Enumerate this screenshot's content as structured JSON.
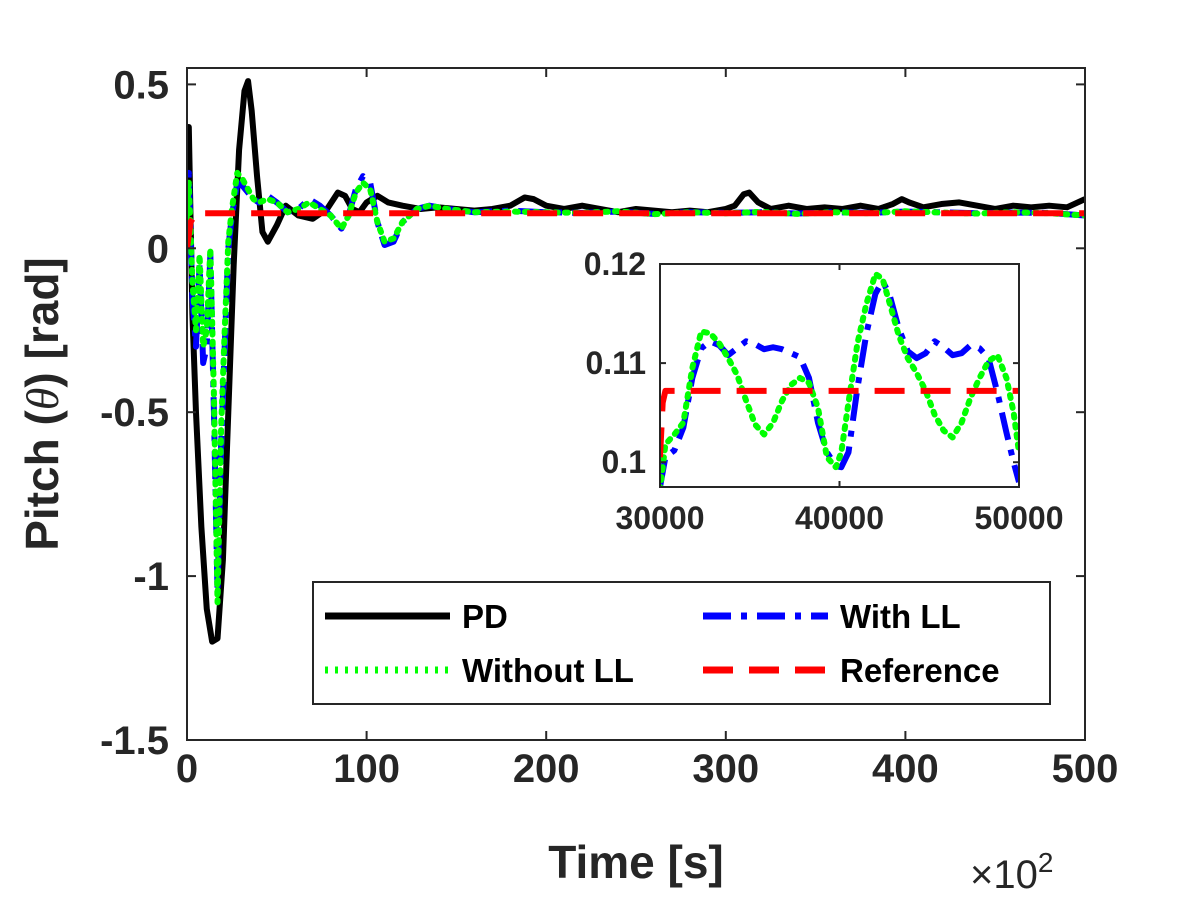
{
  "colors": {
    "PD": "#000000",
    "With LL": "#0000ff",
    "Without LL": "#00ff00",
    "Reference": "#ff0000",
    "axis": "#262626"
  },
  "axis_text": {
    "xlabel": "Time [s]",
    "ylabel_pre": "Pitch (",
    "ylabel_sym": "θ",
    "ylabel_post": ") [rad]",
    "multiplier_base": "×10",
    "multiplier_exp": "2"
  },
  "chart_data": [
    {
      "type": "line",
      "title": "",
      "xlabel": "Time [s]",
      "ylabel": "Pitch (θ) [rad]",
      "x_multiplier": "×10^2",
      "xlim": [
        0,
        500
      ],
      "ylim": [
        -1.5,
        0.55
      ],
      "xticks": [
        0,
        100,
        200,
        300,
        400,
        500
      ],
      "xtick_labels": [
        "0",
        "100",
        "200",
        "300",
        "400",
        "500"
      ],
      "yticks": [
        -1.5,
        -1,
        -0.5,
        0,
        0.5
      ],
      "ytick_labels": [
        "-1.5",
        "-1",
        "-0.5",
        "0",
        "0.5"
      ],
      "grid": false,
      "legend_position": "bottom-right",
      "legend": [
        "PD",
        "With LL",
        "Without LL",
        "Reference"
      ],
      "series": [
        {
          "name": "PD",
          "style": "solid",
          "x": [
            0,
            1,
            3,
            5,
            8,
            11,
            14,
            17,
            20,
            23,
            26,
            29,
            32,
            34,
            36,
            39,
            42,
            45,
            50,
            55,
            62,
            70,
            78,
            84,
            88,
            92,
            96,
            100,
            106,
            112,
            120,
            130,
            140,
            150,
            160,
            170,
            180,
            188,
            193,
            200,
            210,
            220,
            230,
            240,
            250,
            260,
            270,
            280,
            290,
            300,
            305,
            310,
            313,
            318,
            325,
            335,
            345,
            355,
            365,
            375,
            385,
            393,
            398,
            402,
            410,
            420,
            430,
            440,
            450,
            460,
            470,
            480,
            490,
            500
          ],
          "y": [
            0.1,
            0.37,
            -0.2,
            -0.5,
            -0.85,
            -1.1,
            -1.2,
            -1.19,
            -0.95,
            -0.5,
            -0.05,
            0.3,
            0.48,
            0.51,
            0.42,
            0.22,
            0.05,
            0.02,
            0.07,
            0.13,
            0.1,
            0.09,
            0.12,
            0.17,
            0.16,
            0.12,
            0.11,
            0.14,
            0.16,
            0.14,
            0.13,
            0.12,
            0.125,
            0.12,
            0.115,
            0.12,
            0.13,
            0.155,
            0.15,
            0.13,
            0.12,
            0.13,
            0.12,
            0.11,
            0.12,
            0.115,
            0.11,
            0.115,
            0.11,
            0.12,
            0.13,
            0.165,
            0.17,
            0.14,
            0.12,
            0.13,
            0.12,
            0.125,
            0.12,
            0.13,
            0.12,
            0.135,
            0.15,
            0.14,
            0.125,
            0.135,
            0.14,
            0.13,
            0.12,
            0.13,
            0.125,
            0.13,
            0.125,
            0.15
          ]
        },
        {
          "name": "With LL",
          "style": "dashdot",
          "x": [
            0,
            1,
            3,
            5,
            7,
            9,
            11,
            13,
            15,
            17,
            19,
            21,
            23,
            25,
            28,
            31,
            34,
            37,
            40,
            45,
            50,
            56,
            62,
            68,
            74,
            80,
            86,
            90,
            94,
            98,
            102,
            106,
            110,
            115,
            120,
            128,
            135,
            145,
            160,
            180,
            200,
            220,
            240,
            260,
            280,
            300,
            320,
            340,
            360,
            380,
            400,
            420,
            440,
            460,
            480,
            500
          ],
          "y": [
            0.1,
            0.23,
            -0.15,
            -0.3,
            -0.05,
            -0.35,
            -0.3,
            -0.02,
            -0.5,
            -1.05,
            -0.6,
            -0.3,
            0.0,
            0.1,
            0.2,
            0.19,
            0.17,
            0.15,
            0.14,
            0.16,
            0.14,
            0.11,
            0.12,
            0.15,
            0.13,
            0.1,
            0.06,
            0.1,
            0.18,
            0.22,
            0.2,
            0.08,
            0.01,
            0.02,
            0.08,
            0.12,
            0.13,
            0.12,
            0.11,
            0.115,
            0.11,
            0.108,
            0.112,
            0.105,
            0.11,
            0.108,
            0.11,
            0.106,
            0.11,
            0.108,
            0.112,
            0.11,
            0.107,
            0.109,
            0.108,
            0.1
          ]
        },
        {
          "name": "Without LL",
          "style": "dotted",
          "x": [
            0,
            1,
            3,
            5,
            7,
            9,
            11,
            13,
            15,
            17,
            19,
            21,
            23,
            25,
            28,
            31,
            34,
            37,
            40,
            45,
            50,
            56,
            62,
            68,
            74,
            80,
            86,
            90,
            94,
            98,
            102,
            106,
            110,
            115,
            120,
            128,
            135,
            145,
            160,
            180,
            200,
            220,
            240,
            260,
            280,
            300,
            320,
            340,
            360,
            380,
            400,
            420,
            440,
            460,
            480,
            500
          ],
          "y": [
            0.1,
            0.2,
            -0.1,
            -0.25,
            -0.02,
            -0.3,
            -0.25,
            0.0,
            -0.45,
            -1.08,
            -0.55,
            -0.25,
            0.02,
            0.12,
            0.23,
            0.21,
            0.18,
            0.15,
            0.14,
            0.15,
            0.14,
            0.11,
            0.12,
            0.14,
            0.12,
            0.1,
            0.06,
            0.1,
            0.17,
            0.2,
            0.18,
            0.08,
            0.02,
            0.03,
            0.08,
            0.12,
            0.13,
            0.12,
            0.11,
            0.112,
            0.11,
            0.108,
            0.113,
            0.104,
            0.11,
            0.107,
            0.111,
            0.105,
            0.11,
            0.107,
            0.113,
            0.109,
            0.106,
            0.11,
            0.107,
            0.1
          ]
        },
        {
          "name": "Reference",
          "style": "dashed",
          "x": [
            0,
            2,
            5,
            500
          ],
          "y": [
            0.0,
            0.08,
            0.107,
            0.107
          ]
        }
      ]
    },
    {
      "type": "line",
      "title": "",
      "xlabel": "",
      "ylabel": "",
      "xlim": [
        30000,
        50000
      ],
      "ylim": [
        0.0975,
        0.12
      ],
      "xticks": [
        30000,
        40000,
        50000
      ],
      "xtick_labels": [
        "30000",
        "40000",
        "50000"
      ],
      "yticks": [
        0.1,
        0.11,
        0.12
      ],
      "ytick_labels": [
        "0.1",
        "0.11",
        "0.12"
      ],
      "grid": false,
      "series": [
        {
          "name": "With LL",
          "style": "dashdot",
          "x": [
            30000,
            30300,
            30800,
            31300,
            31800,
            32300,
            32800,
            33300,
            33800,
            34300,
            34800,
            35300,
            35800,
            36300,
            36800,
            37300,
            37800,
            38300,
            38800,
            39300,
            39800,
            40100,
            40500,
            41000,
            41500,
            42000,
            42400,
            42800,
            43300,
            43800,
            44300,
            44800,
            45300,
            45800,
            46300,
            46800,
            47300,
            47800,
            48300,
            48800,
            49300,
            49700,
            50000
          ],
          "y": [
            0.0975,
            0.1005,
            0.1012,
            0.1035,
            0.1085,
            0.1115,
            0.1122,
            0.1118,
            0.1108,
            0.1115,
            0.1122,
            0.1119,
            0.1114,
            0.1116,
            0.1114,
            0.111,
            0.1106,
            0.1085,
            0.104,
            0.101,
            0.0996,
            0.0995,
            0.101,
            0.1075,
            0.113,
            0.117,
            0.1183,
            0.1168,
            0.1135,
            0.1112,
            0.1105,
            0.111,
            0.1122,
            0.1116,
            0.1108,
            0.111,
            0.1118,
            0.1115,
            0.1105,
            0.107,
            0.103,
            0.1,
            0.098
          ]
        },
        {
          "name": "Without LL",
          "style": "dotted",
          "x": [
            30000,
            30300,
            30800,
            31300,
            31800,
            32300,
            32800,
            33300,
            33800,
            34300,
            34800,
            35300,
            35800,
            36300,
            36800,
            37300,
            37800,
            38300,
            38800,
            39300,
            39800,
            40100,
            40500,
            41000,
            41500,
            42000,
            42400,
            42800,
            43300,
            43800,
            44300,
            44800,
            45300,
            45800,
            46300,
            46800,
            47300,
            47800,
            48300,
            48800,
            49300,
            49700,
            50000
          ],
          "y": [
            0.0972,
            0.1018,
            0.1028,
            0.104,
            0.1095,
            0.1132,
            0.113,
            0.112,
            0.1105,
            0.1088,
            0.1062,
            0.1038,
            0.1028,
            0.104,
            0.1062,
            0.1078,
            0.1085,
            0.108,
            0.1055,
            0.1005,
            0.0995,
            0.101,
            0.106,
            0.112,
            0.116,
            0.119,
            0.1185,
            0.116,
            0.1128,
            0.1105,
            0.109,
            0.1072,
            0.1048,
            0.1032,
            0.1025,
            0.104,
            0.1065,
            0.1085,
            0.1102,
            0.1108,
            0.1085,
            0.105,
            0.101
          ]
        },
        {
          "name": "Reference",
          "style": "dashed",
          "x": [
            30000,
            30150,
            30300,
            50000
          ],
          "y": [
            0.1005,
            0.106,
            0.1072,
            0.1072
          ]
        }
      ]
    }
  ]
}
